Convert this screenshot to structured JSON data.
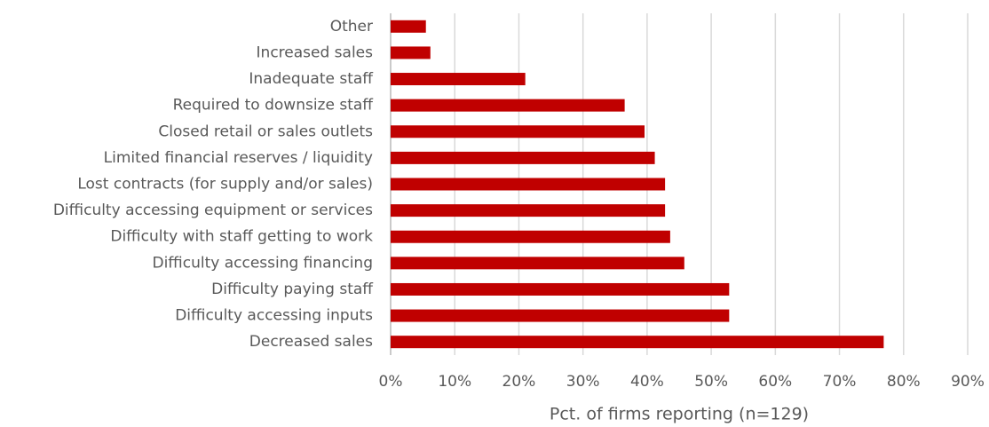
{
  "chart_data": {
    "type": "barh",
    "xlabel": "Pct. of firms reporting (n=129)",
    "categories": [
      "Other",
      "Increased sales",
      "Inadequate staff",
      "Required to downsize staff",
      "Closed retail or sales outlets",
      "Limited financial reserves / liquidity",
      "Lost contracts (for supply and/or sales)",
      "Difficulty accessing equipment or services",
      "Difficulty with staff getting to work",
      "Difficulty accessing financing",
      "Difficulty paying staff",
      "Difficulty accessing inputs",
      "Decreased sales"
    ],
    "values": [
      5.5,
      6.2,
      21,
      36.5,
      39.6,
      41.2,
      42.8,
      42.8,
      43.6,
      45.8,
      52.8,
      52.8,
      76.9
    ],
    "color": "#c00000",
    "xlim": [
      0,
      90
    ],
    "xticks": [
      {
        "value": 0,
        "label": "0%"
      },
      {
        "value": 10,
        "label": "10%"
      },
      {
        "value": 20,
        "label": "20%"
      },
      {
        "value": 30,
        "label": "30%"
      },
      {
        "value": 40,
        "label": "40%"
      },
      {
        "value": 50,
        "label": "50%"
      },
      {
        "value": 60,
        "label": "60%"
      },
      {
        "value": 70,
        "label": "70%"
      },
      {
        "value": 80,
        "label": "80%"
      },
      {
        "value": 90,
        "label": "90%"
      }
    ],
    "grid": true
  }
}
